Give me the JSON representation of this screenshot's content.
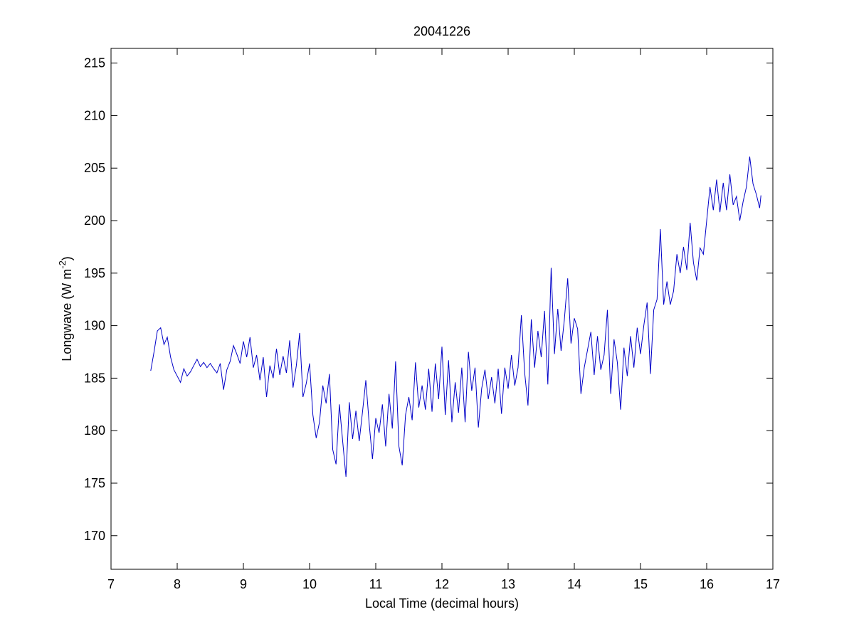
{
  "chart_data": {
    "type": "line",
    "title": "20041226",
    "xlabel": "Local Time (decimal hours)",
    "ylabel": [
      "Longwave (W m",
      "-2",
      ")"
    ],
    "xlim": [
      7,
      17
    ],
    "xticks": [
      7,
      8,
      9,
      10,
      11,
      12,
      13,
      14,
      15,
      16,
      17
    ],
    "ylim": [
      166.8,
      216.4
    ],
    "yticks": [
      170,
      175,
      180,
      185,
      190,
      195,
      200,
      205,
      210,
      215
    ],
    "color": "#0000c8",
    "x": [
      7.6,
      7.65,
      7.7,
      7.75,
      7.8,
      7.85,
      7.9,
      7.95,
      8.0,
      8.05,
      8.1,
      8.15,
      8.2,
      8.25,
      8.3,
      8.35,
      8.4,
      8.45,
      8.5,
      8.55,
      8.6,
      8.65,
      8.7,
      8.75,
      8.8,
      8.85,
      8.9,
      8.95,
      9.0,
      9.05,
      9.1,
      9.15,
      9.2,
      9.25,
      9.3,
      9.35,
      9.4,
      9.45,
      9.5,
      9.55,
      9.6,
      9.65,
      9.7,
      9.75,
      9.8,
      9.85,
      9.9,
      9.95,
      10.0,
      10.05,
      10.1,
      10.15,
      10.2,
      10.25,
      10.3,
      10.35,
      10.4,
      10.45,
      10.5,
      10.55,
      10.6,
      10.65,
      10.7,
      10.75,
      10.8,
      10.85,
      10.9,
      10.95,
      11.0,
      11.05,
      11.1,
      11.15,
      11.2,
      11.25,
      11.3,
      11.35,
      11.4,
      11.45,
      11.5,
      11.55,
      11.6,
      11.65,
      11.7,
      11.75,
      11.8,
      11.85,
      11.9,
      11.95,
      12.0,
      12.05,
      12.1,
      12.15,
      12.2,
      12.25,
      12.3,
      12.35,
      12.4,
      12.45,
      12.5,
      12.55,
      12.6,
      12.65,
      12.7,
      12.75,
      12.8,
      12.85,
      12.9,
      12.95,
      13.0,
      13.05,
      13.1,
      13.15,
      13.2,
      13.25,
      13.3,
      13.35,
      13.4,
      13.45,
      13.5,
      13.55,
      13.6,
      13.65,
      13.7,
      13.75,
      13.8,
      13.85,
      13.9,
      13.95,
      14.0,
      14.05,
      14.1,
      14.15,
      14.2,
      14.25,
      14.3,
      14.35,
      14.4,
      14.45,
      14.5,
      14.55,
      14.6,
      14.65,
      14.7,
      14.75,
      14.8,
      14.85,
      14.9,
      14.95,
      15.0,
      15.05,
      15.1,
      15.15,
      15.2,
      15.25,
      15.3,
      15.35,
      15.4,
      15.45,
      15.5,
      15.55,
      15.6,
      15.65,
      15.7,
      15.75,
      15.8,
      15.85,
      15.9,
      15.95,
      16.0,
      16.05,
      16.1,
      16.15,
      16.2,
      16.25,
      16.3,
      16.35,
      16.4,
      16.45,
      16.5,
      16.55,
      16.6,
      16.65,
      16.7,
      16.75,
      16.8,
      16.82
    ],
    "values": [
      185.7,
      187.5,
      189.5,
      189.8,
      188.2,
      188.9,
      187.0,
      185.8,
      185.2,
      184.6,
      185.9,
      185.2,
      185.6,
      186.2,
      186.8,
      186.1,
      186.5,
      186.0,
      186.4,
      185.9,
      185.5,
      186.4,
      183.9,
      185.8,
      186.6,
      188.1,
      187.3,
      186.4,
      188.5,
      187.0,
      188.9,
      186.0,
      187.2,
      184.8,
      187.0,
      183.2,
      186.2,
      185.0,
      187.8,
      185.3,
      187.1,
      185.5,
      188.6,
      184.1,
      186.2,
      189.3,
      183.2,
      184.5,
      186.4,
      181.5,
      179.3,
      180.8,
      184.3,
      182.6,
      185.4,
      178.2,
      176.8,
      182.5,
      179.0,
      175.6,
      182.7,
      179.2,
      181.9,
      179.0,
      181.8,
      184.8,
      180.7,
      177.3,
      181.2,
      179.8,
      182.5,
      178.5,
      183.5,
      180.2,
      186.6,
      178.5,
      176.7,
      181.5,
      183.2,
      181.0,
      186.5,
      182.2,
      184.3,
      182.0,
      185.9,
      181.8,
      186.4,
      183.0,
      188.0,
      181.5,
      186.7,
      180.8,
      184.6,
      181.7,
      186.0,
      180.8,
      187.5,
      183.8,
      186.0,
      180.3,
      184.0,
      185.8,
      183.0,
      185.1,
      182.6,
      185.9,
      181.6,
      186.0,
      184.0,
      187.2,
      184.3,
      186.0,
      191.0,
      185.5,
      182.4,
      190.6,
      186.0,
      189.5,
      187.0,
      191.4,
      184.4,
      195.5,
      187.3,
      191.6,
      187.6,
      190.6,
      194.5,
      188.3,
      190.7,
      189.7,
      183.5,
      186.0,
      187.7,
      189.4,
      185.3,
      189.0,
      185.8,
      187.2,
      191.5,
      183.5,
      188.7,
      186.5,
      182.0,
      187.9,
      185.2,
      189.0,
      186.0,
      189.8,
      187.3,
      190.0,
      192.2,
      185.4,
      191.5,
      192.5,
      199.2,
      192.0,
      194.2,
      192.0,
      193.3,
      196.8,
      195.0,
      197.5,
      195.3,
      199.8,
      196.0,
      194.3,
      197.4,
      196.8,
      200.0,
      203.2,
      201.0,
      203.9,
      200.8,
      203.6,
      201.0,
      204.4,
      201.5,
      202.3,
      200.0,
      201.8,
      203.2,
      206.1,
      203.5,
      202.5,
      201.2,
      202.4
    ]
  }
}
